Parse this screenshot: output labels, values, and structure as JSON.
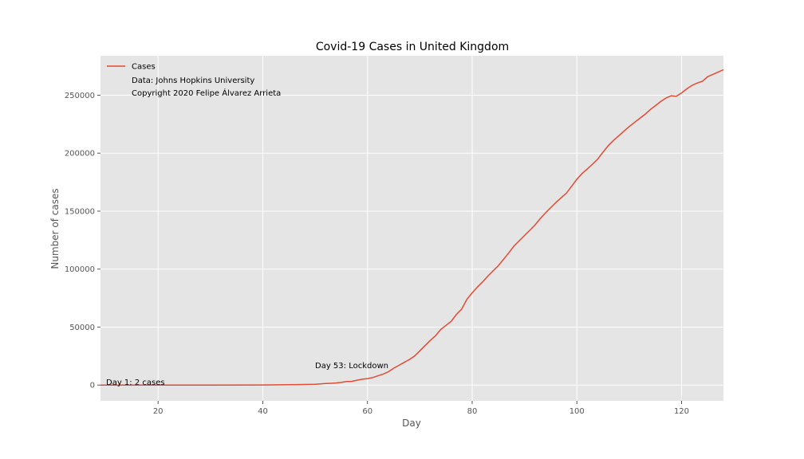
{
  "chart_data": {
    "type": "line",
    "title": "Covid-19 Cases in United Kingdom",
    "xlabel": "Day",
    "ylabel": "Number of cases",
    "xlim": [
      9,
      128
    ],
    "ylim": [
      -13600,
      284000
    ],
    "grid": true,
    "legend_placement": "top-left",
    "x_ticks": [
      20,
      40,
      60,
      80,
      100,
      120
    ],
    "y_ticks": [
      0,
      50000,
      100000,
      150000,
      200000,
      250000
    ],
    "legend": {
      "series_label": "Cases",
      "notes": [
        "Data: Johns Hopkins University",
        "Copyright 2020 Felipe Álvarez Arrieta"
      ]
    },
    "annotations": [
      {
        "text": "Day 1: 2 cases",
        "x": 10,
        "y": 2
      },
      {
        "text": "Day 53: Lockdown",
        "x": 53,
        "y": 6000
      }
    ],
    "series": [
      {
        "name": "Cases",
        "color": "#e24a33",
        "x": [
          9,
          20,
          30,
          40,
          45,
          50,
          52,
          53,
          54,
          55,
          56,
          57,
          58,
          59,
          60,
          61,
          62,
          63,
          64,
          65,
          66,
          67,
          68,
          69,
          70,
          71,
          72,
          73,
          74,
          75,
          76,
          77,
          78,
          79,
          80,
          81,
          82,
          83,
          84,
          85,
          86,
          87,
          88,
          89,
          90,
          91,
          92,
          93,
          94,
          95,
          96,
          97,
          98,
          99,
          100,
          101,
          102,
          103,
          104,
          105,
          106,
          107,
          108,
          109,
          110,
          111,
          112,
          113,
          114,
          115,
          116,
          117,
          118,
          119,
          120,
          121,
          122,
          123,
          124,
          125,
          126,
          127,
          128
        ],
        "values": [
          2,
          2,
          10,
          100,
          300,
          600,
          1300,
          1500,
          1800,
          2300,
          3000,
          3200,
          4200,
          5000,
          5600,
          6500,
          8000,
          9500,
          11500,
          14500,
          17000,
          19500,
          22000,
          25000,
          29500,
          34000,
          38500,
          42500,
          48000,
          51500,
          55000,
          61000,
          65500,
          74000,
          79500,
          84500,
          89000,
          94000,
          98500,
          103000,
          108500,
          114000,
          120000,
          124500,
          129000,
          133500,
          138000,
          143500,
          148500,
          153000,
          157500,
          161500,
          165500,
          171500,
          177500,
          182500,
          186500,
          190500,
          195000,
          201000,
          206500,
          211000,
          215000,
          219000,
          223000,
          226500,
          230000,
          233500,
          237500,
          241000,
          244500,
          247500,
          249500,
          249000,
          252000,
          255500,
          258500,
          260500,
          262000,
          266000,
          268000,
          270000,
          272000
        ]
      }
    ]
  }
}
